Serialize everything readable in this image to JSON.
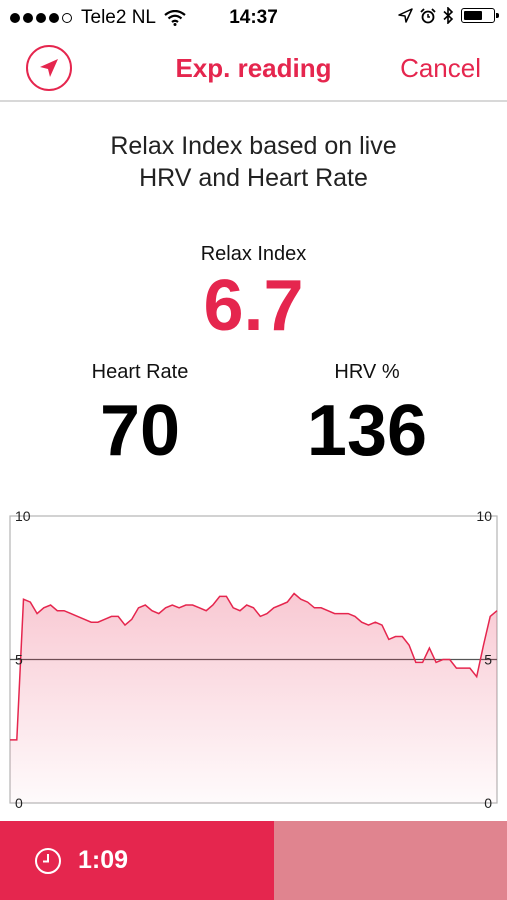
{
  "status_bar": {
    "carrier": "Tele2 NL",
    "time": "14:37",
    "signal_dots_filled": 4,
    "signal_dots_total": 5,
    "battery_level": 0.65
  },
  "nav": {
    "title": "Exp. reading",
    "cancel_label": "Cancel",
    "accent_color": "#e5264e"
  },
  "description": {
    "line1": "Relax Index based on live",
    "line2": "HRV and Heart Rate"
  },
  "relax_index": {
    "label": "Relax Index",
    "value": "6.7"
  },
  "heart_rate": {
    "label": "Heart Rate",
    "value": "70"
  },
  "hrv": {
    "label": "HRV %",
    "value": "136"
  },
  "chart_data": {
    "type": "area",
    "ylim": [
      0,
      10
    ],
    "y_ticks": [
      "0",
      "5",
      "10"
    ],
    "grid": "midline",
    "values": [
      2.2,
      2.2,
      7.1,
      7.0,
      6.6,
      6.8,
      6.9,
      6.7,
      6.7,
      6.6,
      6.5,
      6.4,
      6.3,
      6.3,
      6.4,
      6.5,
      6.5,
      6.2,
      6.4,
      6.8,
      6.9,
      6.7,
      6.6,
      6.8,
      6.9,
      6.8,
      6.9,
      6.9,
      6.8,
      6.7,
      6.9,
      7.2,
      7.2,
      6.8,
      6.7,
      6.9,
      6.8,
      6.5,
      6.6,
      6.8,
      6.9,
      7.0,
      7.3,
      7.1,
      7.0,
      6.8,
      6.8,
      6.7,
      6.6,
      6.6,
      6.6,
      6.5,
      6.3,
      6.2,
      6.3,
      6.2,
      5.7,
      5.8,
      5.8,
      5.5,
      4.9,
      4.9,
      5.4,
      4.9,
      5.0,
      5.0,
      4.7,
      4.7,
      4.7,
      4.4,
      5.5,
      6.5,
      6.7
    ]
  },
  "timer": {
    "value": "1:09",
    "progress": 0.54
  }
}
